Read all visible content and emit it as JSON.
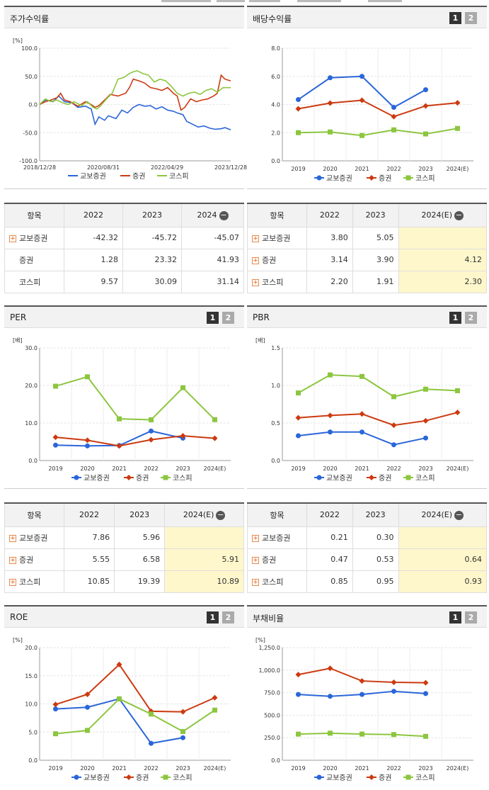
{
  "panels": {
    "stock": {
      "title": "주가수익률"
    },
    "dividend": {
      "title": "배당수익률",
      "btn1": "1",
      "btn2": "2"
    },
    "per": {
      "title": "PER",
      "btn1": "1",
      "btn2": "2"
    },
    "pbr": {
      "title": "PBR",
      "btn1": "1",
      "btn2": "2"
    },
    "roe": {
      "title": "ROE",
      "btn1": "1",
      "btn2": "2"
    },
    "debt": {
      "title": "부채비율",
      "btn1": "1",
      "btn2": "2"
    }
  },
  "colors": {
    "kyobo": "#2b66d9",
    "securities": "#cc3a10",
    "kospi": "#8cc63f"
  },
  "chart_data": [
    {
      "id": "stock",
      "type": "line",
      "unit": "[%]",
      "ylim": [
        -100,
        100
      ],
      "yticks": [
        "100.0",
        "50.0",
        "0.0",
        "-50.0",
        "-100.0"
      ],
      "xticks": [
        "2018/12/28",
        "2020/08/31",
        "2022/04/29",
        "2023/12/28"
      ],
      "legend": [
        "교보증권",
        "증권",
        "코스피"
      ],
      "series": [
        {
          "name": "교보증권",
          "points": [
            [
              0,
              0
            ],
            [
              0.03,
              8
            ],
            [
              0.07,
              5
            ],
            [
              0.1,
              15
            ],
            [
              0.13,
              5
            ],
            [
              0.17,
              3
            ],
            [
              0.2,
              -5
            ],
            [
              0.24,
              -3
            ],
            [
              0.27,
              -8
            ],
            [
              0.29,
              -35
            ],
            [
              0.31,
              -22
            ],
            [
              0.34,
              -28
            ],
            [
              0.36,
              -20
            ],
            [
              0.4,
              -25
            ],
            [
              0.43,
              -10
            ],
            [
              0.46,
              -15
            ],
            [
              0.49,
              -5
            ],
            [
              0.52,
              0
            ],
            [
              0.55,
              -3
            ],
            [
              0.58,
              -2
            ],
            [
              0.61,
              -8
            ],
            [
              0.64,
              -4
            ],
            [
              0.67,
              -10
            ],
            [
              0.7,
              -12
            ],
            [
              0.72,
              -15
            ],
            [
              0.75,
              -18
            ],
            [
              0.77,
              -30
            ],
            [
              0.8,
              -35
            ],
            [
              0.83,
              -40
            ],
            [
              0.86,
              -38
            ],
            [
              0.89,
              -42
            ],
            [
              0.92,
              -44
            ],
            [
              0.95,
              -43
            ],
            [
              0.97,
              -41
            ],
            [
              1.0,
              -45
            ]
          ]
        },
        {
          "name": "증권",
          "points": [
            [
              0,
              0
            ],
            [
              0.03,
              5
            ],
            [
              0.06,
              8
            ],
            [
              0.09,
              12
            ],
            [
              0.11,
              20
            ],
            [
              0.13,
              8
            ],
            [
              0.16,
              5
            ],
            [
              0.2,
              -3
            ],
            [
              0.24,
              5
            ],
            [
              0.27,
              0
            ],
            [
              0.29,
              -5
            ],
            [
              0.31,
              -2
            ],
            [
              0.34,
              8
            ],
            [
              0.37,
              18
            ],
            [
              0.41,
              15
            ],
            [
              0.45,
              20
            ],
            [
              0.47,
              30
            ],
            [
              0.49,
              45
            ],
            [
              0.52,
              42
            ],
            [
              0.55,
              38
            ],
            [
              0.58,
              30
            ],
            [
              0.61,
              28
            ],
            [
              0.64,
              25
            ],
            [
              0.67,
              30
            ],
            [
              0.7,
              20
            ],
            [
              0.72,
              15
            ],
            [
              0.74,
              -10
            ],
            [
              0.76,
              -5
            ],
            [
              0.79,
              10
            ],
            [
              0.82,
              5
            ],
            [
              0.85,
              8
            ],
            [
              0.88,
              10
            ],
            [
              0.91,
              15
            ],
            [
              0.93,
              20
            ],
            [
              0.95,
              52
            ],
            [
              0.97,
              45
            ],
            [
              1.0,
              42
            ]
          ]
        },
        {
          "name": "코스피",
          "points": [
            [
              0,
              0
            ],
            [
              0.03,
              10
            ],
            [
              0.06,
              5
            ],
            [
              0.09,
              8
            ],
            [
              0.12,
              3
            ],
            [
              0.15,
              0
            ],
            [
              0.18,
              5
            ],
            [
              0.22,
              -2
            ],
            [
              0.25,
              5
            ],
            [
              0.28,
              -5
            ],
            [
              0.3,
              -8
            ],
            [
              0.32,
              -2
            ],
            [
              0.35,
              10
            ],
            [
              0.38,
              20
            ],
            [
              0.41,
              45
            ],
            [
              0.44,
              48
            ],
            [
              0.47,
              55
            ],
            [
              0.49,
              58
            ],
            [
              0.51,
              60
            ],
            [
              0.54,
              55
            ],
            [
              0.57,
              52
            ],
            [
              0.6,
              40
            ],
            [
              0.63,
              45
            ],
            [
              0.66,
              42
            ],
            [
              0.69,
              32
            ],
            [
              0.72,
              20
            ],
            [
              0.75,
              15
            ],
            [
              0.78,
              20
            ],
            [
              0.81,
              22
            ],
            [
              0.84,
              18
            ],
            [
              0.87,
              25
            ],
            [
              0.9,
              28
            ],
            [
              0.93,
              22
            ],
            [
              0.96,
              30
            ],
            [
              1.0,
              30
            ]
          ]
        }
      ]
    },
    {
      "id": "dividend",
      "type": "line",
      "unit": "",
      "ylim": [
        0,
        8
      ],
      "yticks": [
        "8.0",
        "6.0",
        "4.0",
        "2.0",
        "0.0"
      ],
      "categories": [
        "2019",
        "2020",
        "2021",
        "2022",
        "2023",
        "2024(E)"
      ],
      "legend": [
        "교보증권",
        "증권",
        "코스피"
      ],
      "series": [
        {
          "name": "교보증권",
          "values": [
            4.35,
            5.9,
            6.0,
            3.8,
            5.05,
            null
          ]
        },
        {
          "name": "증권",
          "values": [
            3.7,
            4.1,
            4.3,
            3.14,
            3.9,
            4.12
          ]
        },
        {
          "name": "코스피",
          "values": [
            2.0,
            2.05,
            1.8,
            2.2,
            1.91,
            2.3
          ]
        }
      ]
    },
    {
      "id": "per",
      "type": "line",
      "unit": "[배]",
      "ylim": [
        0,
        30
      ],
      "yticks": [
        "30.0",
        "20.0",
        "10.0",
        "0.0"
      ],
      "categories": [
        "2019",
        "2020",
        "2021",
        "2022",
        "2023",
        "2024(E)"
      ],
      "legend": [
        "교보증권",
        "증권",
        "코스피"
      ],
      "series": [
        {
          "name": "교보증권",
          "values": [
            4.1,
            3.9,
            4.0,
            7.86,
            5.96,
            null
          ]
        },
        {
          "name": "증권",
          "values": [
            6.2,
            5.4,
            3.9,
            5.55,
            6.58,
            5.91
          ]
        },
        {
          "name": "코스피",
          "values": [
            19.8,
            22.3,
            11.1,
            10.85,
            19.39,
            10.89
          ]
        }
      ]
    },
    {
      "id": "pbr",
      "type": "line",
      "unit": "[배]",
      "ylim": [
        0,
        1.5
      ],
      "yticks": [
        "1.5",
        "1.0",
        "0.5",
        "0.0"
      ],
      "categories": [
        "2019",
        "2020",
        "2021",
        "2022",
        "2023",
        "2024(E)"
      ],
      "legend": [
        "교보증권",
        "증권",
        "코스피"
      ],
      "series": [
        {
          "name": "교보증권",
          "values": [
            0.33,
            0.38,
            0.38,
            0.21,
            0.3,
            null
          ]
        },
        {
          "name": "증권",
          "values": [
            0.57,
            0.6,
            0.62,
            0.47,
            0.53,
            0.64
          ]
        },
        {
          "name": "코스피",
          "values": [
            0.9,
            1.14,
            1.12,
            0.85,
            0.95,
            0.93
          ]
        }
      ]
    },
    {
      "id": "roe",
      "type": "line",
      "unit": "[%]",
      "ylim": [
        0,
        20
      ],
      "yticks": [
        "20.0",
        "15.0",
        "10.0",
        "5.0",
        "0.0"
      ],
      "categories": [
        "2019",
        "2020",
        "2021",
        "2022",
        "2023",
        "2024(E)"
      ],
      "legend": [
        "교보증권",
        "증권",
        "코스피"
      ],
      "series": [
        {
          "name": "교보증권",
          "values": [
            9.1,
            9.4,
            10.9,
            3.0,
            4.0,
            null
          ]
        },
        {
          "name": "증권",
          "values": [
            9.9,
            11.7,
            17.0,
            8.7,
            8.6,
            11.1
          ]
        },
        {
          "name": "코스피",
          "values": [
            4.7,
            5.3,
            10.9,
            8.2,
            5.1,
            8.9
          ]
        }
      ]
    },
    {
      "id": "debt",
      "type": "line",
      "unit": "[%]",
      "ylim": [
        0,
        1250
      ],
      "yticks": [
        "1,250.0",
        "1,000.0",
        "750.0",
        "500.0",
        "250.0",
        "0.0"
      ],
      "categories": [
        "2019",
        "2020",
        "2021",
        "2022",
        "2023",
        "2024(E)"
      ],
      "legend": [
        "교보증권",
        "증권",
        "코스피"
      ],
      "series": [
        {
          "name": "교보증권",
          "values": [
            730,
            710,
            730,
            765,
            740,
            null
          ]
        },
        {
          "name": "증권",
          "values": [
            950,
            1020,
            880,
            865,
            860,
            null
          ]
        },
        {
          "name": "코스피",
          "values": [
            290,
            300,
            290,
            285,
            265,
            null
          ]
        }
      ]
    }
  ],
  "tables": {
    "stock": {
      "header": [
        "항목",
        "2022",
        "2023",
        "2024"
      ],
      "rows": [
        {
          "label": "교보증권",
          "plus": true,
          "v": [
            "-42.32",
            "-45.72",
            "-45.07"
          ]
        },
        {
          "label": "증권",
          "plus": false,
          "v": [
            "1.28",
            "23.32",
            "41.93"
          ]
        },
        {
          "label": "코스피",
          "plus": false,
          "v": [
            "9.57",
            "30.09",
            "31.14"
          ]
        }
      ]
    },
    "dividend": {
      "header": [
        "항목",
        "2022",
        "2023",
        "2024(E)"
      ],
      "rows": [
        {
          "label": "교보증권",
          "plus": true,
          "v": [
            "3.80",
            "5.05",
            ""
          ]
        },
        {
          "label": "증권",
          "plus": true,
          "v": [
            "3.14",
            "3.90",
            "4.12"
          ]
        },
        {
          "label": "코스피",
          "plus": true,
          "v": [
            "2.20",
            "1.91",
            "2.30"
          ]
        }
      ]
    },
    "per": {
      "header": [
        "항목",
        "2022",
        "2023",
        "2024(E)"
      ],
      "rows": [
        {
          "label": "교보증권",
          "plus": true,
          "v": [
            "7.86",
            "5.96",
            ""
          ]
        },
        {
          "label": "증권",
          "plus": true,
          "v": [
            "5.55",
            "6.58",
            "5.91"
          ]
        },
        {
          "label": "코스피",
          "plus": true,
          "v": [
            "10.85",
            "19.39",
            "10.89"
          ]
        }
      ]
    },
    "pbr": {
      "header": [
        "항목",
        "2022",
        "2023",
        "2024(E)"
      ],
      "rows": [
        {
          "label": "교보증권",
          "plus": true,
          "v": [
            "0.21",
            "0.30",
            ""
          ]
        },
        {
          "label": "증권",
          "plus": true,
          "v": [
            "0.47",
            "0.53",
            "0.64"
          ]
        },
        {
          "label": "코스피",
          "plus": true,
          "v": [
            "0.85",
            "0.95",
            "0.93"
          ]
        }
      ]
    }
  },
  "icons": {
    "expand": "+",
    "collapse": "−"
  }
}
